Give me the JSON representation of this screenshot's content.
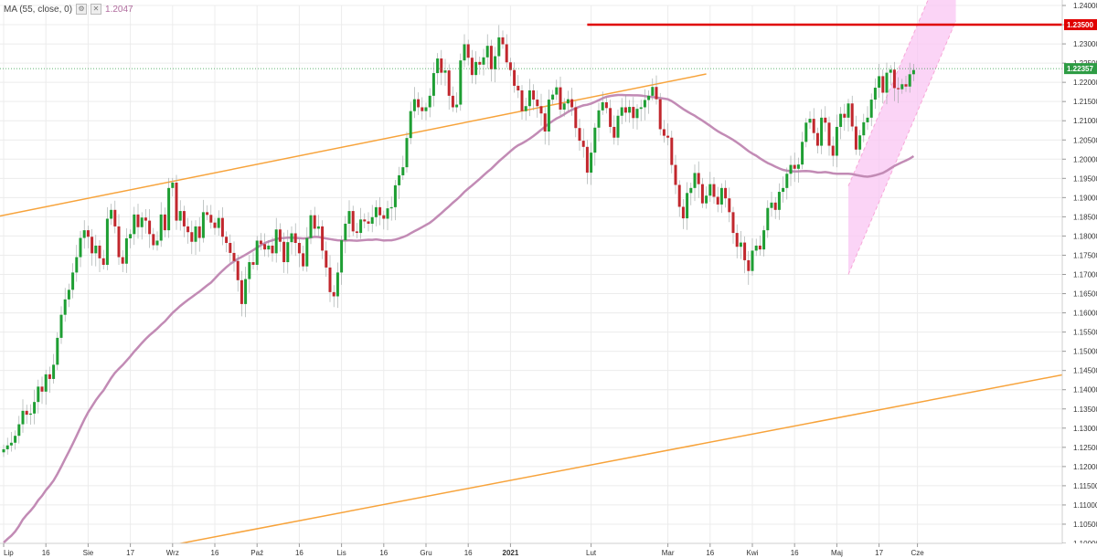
{
  "indicator": {
    "label": "MA (55, close, 0)",
    "value": "1.2047",
    "icons": [
      "gear-icon",
      "close-icon"
    ],
    "color": "#c28bb5"
  },
  "chart_data": {
    "type": "candlestick",
    "ylim": [
      1.1,
      1.24
    ],
    "y_ticks": [
      "1.24000",
      "1.23500",
      "1.23000",
      "1.22500",
      "1.22000",
      "1.21500",
      "1.21000",
      "1.20500",
      "1.20000",
      "1.19500",
      "1.19000",
      "1.18500",
      "1.18000",
      "1.17500",
      "1.17000",
      "1.16500",
      "1.16000",
      "1.15500",
      "1.15000",
      "1.14500",
      "1.14000",
      "1.13500",
      "1.13000",
      "1.12500",
      "1.12000",
      "1.11500",
      "1.11000",
      "1.10500",
      "1.10000"
    ],
    "x_ticks": [
      {
        "label": "Lip",
        "index": 0
      },
      {
        "label": "16",
        "index": 11
      },
      {
        "label": "Sie",
        "index": 22
      },
      {
        "label": "17",
        "index": 33
      },
      {
        "label": "Wrz",
        "index": 44
      },
      {
        "label": "16",
        "index": 55
      },
      {
        "label": "Paź",
        "index": 66
      },
      {
        "label": "16",
        "index": 77
      },
      {
        "label": "Lis",
        "index": 88
      },
      {
        "label": "16",
        "index": 99
      },
      {
        "label": "Gru",
        "index": 110
      },
      {
        "label": "16",
        "index": 121
      },
      {
        "label": "2021",
        "index": 132,
        "bold": true
      },
      {
        "label": "Lut",
        "index": 153
      },
      {
        "label": "Mar",
        "index": 173
      },
      {
        "label": "16",
        "index": 184
      },
      {
        "label": "Kwi",
        "index": 195
      },
      {
        "label": "16",
        "index": 206
      },
      {
        "label": "Maj",
        "index": 217
      },
      {
        "label": "17",
        "index": 228
      },
      {
        "label": "Cze",
        "index": 238
      }
    ],
    "closes": [
      1.1245,
      1.1255,
      1.1262,
      1.128,
      1.131,
      1.1345,
      1.1335,
      1.1338,
      1.1368,
      1.1408,
      1.1395,
      1.144,
      1.1428,
      1.1465,
      1.1535,
      1.1595,
      1.1635,
      1.166,
      1.1705,
      1.1745,
      1.1795,
      1.1815,
      1.1798,
      1.1755,
      1.1775,
      1.1742,
      1.1725,
      1.1845,
      1.1868,
      1.1825,
      1.1745,
      1.1728,
      1.1794,
      1.1805,
      1.1856,
      1.1823,
      1.1848,
      1.184,
      1.1805,
      1.1776,
      1.1788,
      1.1856,
      1.1815,
      1.1925,
      1.1939,
      1.184,
      1.1865,
      1.1825,
      1.181,
      1.1785,
      1.1825,
      1.1795,
      1.1862,
      1.1855,
      1.1835,
      1.1821,
      1.1847,
      1.1798,
      1.1782,
      1.1756,
      1.1735,
      1.1685,
      1.1623,
      1.1688,
      1.1732,
      1.1725,
      1.1788,
      1.1779,
      1.1765,
      1.1775,
      1.1755,
      1.1817,
      1.1785,
      1.1732,
      1.1784,
      1.1807,
      1.1782,
      1.1755,
      1.1721,
      1.1795,
      1.1854,
      1.1819,
      1.1825,
      1.1762,
      1.1718,
      1.1654,
      1.1643,
      1.1705,
      1.1789,
      1.1832,
      1.1865,
      1.1812,
      1.1808,
      1.1843,
      1.1838,
      1.1832,
      1.1849,
      1.1875,
      1.1854,
      1.1845,
      1.1872,
      1.1875,
      1.1932,
      1.1958,
      1.1979,
      1.2055,
      1.2125,
      1.2156,
      1.2135,
      1.2125,
      1.2135,
      1.2165,
      1.2224,
      1.2262,
      1.2225,
      1.2231,
      1.2165,
      1.2135,
      1.2142,
      1.2257,
      1.2299,
      1.2264,
      1.2219,
      1.2253,
      1.2246,
      1.2265,
      1.2295,
      1.2234,
      1.2268,
      1.2317,
      1.2299,
      1.2252,
      1.2232,
      1.2191,
      1.2179,
      1.2125,
      1.2138,
      1.2179,
      1.2155,
      1.2138,
      1.2119,
      1.2072,
      1.2155,
      1.2168,
      1.2187,
      1.2129,
      1.2145,
      1.2156,
      1.2135,
      1.2081,
      1.2048,
      1.2032,
      1.1965,
      1.2017,
      1.2082,
      1.2127,
      1.2148,
      1.2133,
      1.2084,
      1.2056,
      1.2113,
      1.2135,
      1.2121,
      1.2136,
      1.2107,
      1.2131,
      1.2135,
      1.2154,
      1.2165,
      1.2188,
      1.2156,
      1.2078,
      1.2061,
      1.2056,
      1.1985,
      1.1933,
      1.1876,
      1.1846,
      1.1912,
      1.1925,
      1.1964,
      1.1935,
      1.1885,
      1.1905,
      1.1935,
      1.1902,
      1.1882,
      1.1925,
      1.1898,
      1.1862,
      1.1808,
      1.1772,
      1.1783,
      1.1737,
      1.1709,
      1.1762,
      1.1775,
      1.1765,
      1.1815,
      1.1873,
      1.1887,
      1.1868,
      1.1915,
      1.1925,
      1.1962,
      1.1985,
      1.1975,
      1.1986,
      1.2045,
      1.2095,
      1.2105,
      1.2068,
      1.2035,
      1.2108,
      1.2095,
      1.2035,
      1.2009,
      1.2084,
      1.2118,
      1.2108,
      1.2145,
      1.2085,
      1.2025,
      1.2062,
      1.2096,
      1.2108,
      1.2155,
      1.2186,
      1.2216,
      1.2173,
      1.2225,
      1.2233,
      1.2185,
      1.2182,
      1.2195,
      1.2189,
      1.2221,
      1.2232
    ],
    "ma_label": "MA (55, close, 0)",
    "resistance_level": 1.235,
    "current_price": 1.22357,
    "labels": {
      "resistance": "1.23500",
      "current": "1.22357"
    },
    "colors": {
      "up": "#1e9e33",
      "down": "#c1272d",
      "trend": "#f7a33b",
      "resistance": "#e00000",
      "current": "#2e9c44",
      "channel_fill": "#f9c6f3",
      "channel_edge": "#f7a8d8",
      "ma": "#c28bb5",
      "grid": "#ececec"
    },
    "grid": true
  }
}
